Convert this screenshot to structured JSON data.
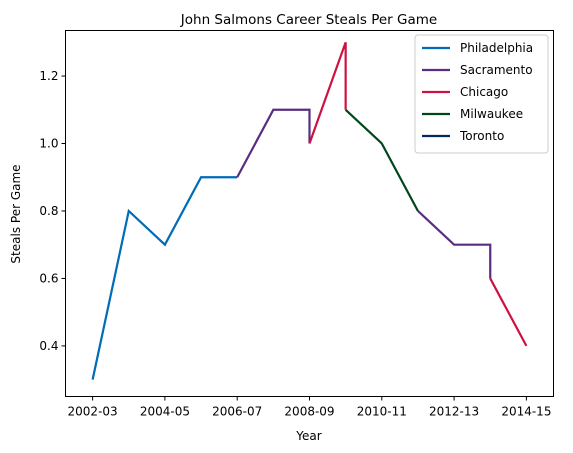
{
  "chart_data": {
    "type": "line",
    "title": "John Salmons Career Steals Per Game",
    "xlabel": "Year",
    "ylabel": "Steals Per Game",
    "x_ticks": [
      "2002-03",
      "2004-05",
      "2006-07",
      "2008-09",
      "2010-11",
      "2012-13",
      "2014-15"
    ],
    "x_tick_values": [
      0,
      2,
      4,
      6,
      8,
      10,
      12
    ],
    "y_ticks": [
      0.4,
      0.6,
      0.8,
      1.0,
      1.2
    ],
    "xlim": [
      -0.75,
      12.75
    ],
    "ylim": [
      0.25,
      1.335
    ],
    "legend_position": "top-right",
    "grid": false,
    "series": [
      {
        "name": "Philadelphia",
        "color": "#006bb6",
        "x": [
          0,
          1,
          2,
          3,
          4
        ],
        "y": [
          0.3,
          0.8,
          0.7,
          0.9,
          0.9
        ]
      },
      {
        "name": "Sacramento",
        "color": "#5a2d81",
        "x": [
          4,
          5,
          6,
          6
        ],
        "y": [
          0.9,
          1.1,
          1.1,
          1.0
        ]
      },
      {
        "name": "Chicago",
        "color": "#ce1141",
        "x": [
          6,
          7,
          7
        ],
        "y": [
          1.0,
          1.3,
          1.1
        ]
      },
      {
        "name": "Milwaukee",
        "color": "#00471b",
        "x": [
          7,
          8,
          9
        ],
        "y": [
          1.1,
          1.0,
          0.8
        ]
      },
      {
        "name": "Sacramento",
        "color": "#5a2d81",
        "x": [
          9,
          10,
          11,
          11
        ],
        "y": [
          0.8,
          0.7,
          0.7,
          0.6
        ]
      },
      {
        "name": "Chicago",
        "color": "#ce1141",
        "x": [
          11,
          12
        ],
        "y": [
          0.6,
          0.4
        ]
      }
    ],
    "legend": [
      {
        "name": "Philadelphia",
        "color": "#006bb6"
      },
      {
        "name": "Sacramento",
        "color": "#5a2d81"
      },
      {
        "name": "Chicago",
        "color": "#ce1141"
      },
      {
        "name": "Milwaukee",
        "color": "#00471b"
      },
      {
        "name": "Toronto",
        "color": "#002b5c"
      }
    ]
  }
}
